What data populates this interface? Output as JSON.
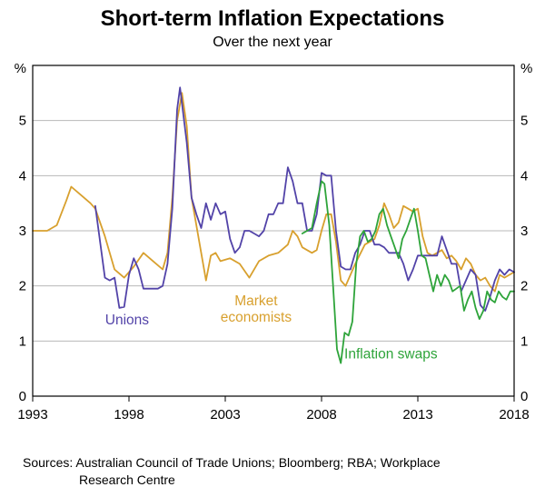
{
  "chart_data": {
    "type": "line",
    "title": "Short-term Inflation Expectations",
    "subtitle": "Over the next year",
    "unit_left": "%",
    "unit_right": "%",
    "xlim": [
      1993,
      2018
    ],
    "ylim": [
      0,
      6
    ],
    "yticks": [
      0,
      1,
      2,
      3,
      4,
      5
    ],
    "xticks": [
      1993,
      1998,
      2003,
      2008,
      2013,
      2018
    ],
    "grid": true,
    "style": {
      "grid_color": "#b8b8b8",
      "frame_color": "#000000"
    },
    "series": [
      {
        "name": "Market economists",
        "color": "#D8A02E",
        "points": [
          [
            1993.0,
            3.0
          ],
          [
            1993.75,
            3.0
          ],
          [
            1994.25,
            3.1
          ],
          [
            1994.75,
            3.55
          ],
          [
            1995.0,
            3.8
          ],
          [
            1995.5,
            3.65
          ],
          [
            1996.0,
            3.5
          ],
          [
            1996.25,
            3.4
          ],
          [
            1996.75,
            2.9
          ],
          [
            1997.25,
            2.3
          ],
          [
            1997.75,
            2.15
          ],
          [
            1998.25,
            2.35
          ],
          [
            1998.75,
            2.6
          ],
          [
            1999.25,
            2.45
          ],
          [
            1999.75,
            2.3
          ],
          [
            2000.0,
            2.6
          ],
          [
            2000.25,
            3.6
          ],
          [
            2000.5,
            5.0
          ],
          [
            2000.75,
            5.5
          ],
          [
            2001.0,
            4.9
          ],
          [
            2001.25,
            3.6
          ],
          [
            2001.75,
            2.6
          ],
          [
            2002.0,
            2.1
          ],
          [
            2002.25,
            2.55
          ],
          [
            2002.5,
            2.6
          ],
          [
            2002.75,
            2.45
          ],
          [
            2003.25,
            2.5
          ],
          [
            2003.75,
            2.4
          ],
          [
            2004.25,
            2.15
          ],
          [
            2004.75,
            2.45
          ],
          [
            2005.25,
            2.55
          ],
          [
            2005.75,
            2.6
          ],
          [
            2006.25,
            2.75
          ],
          [
            2006.5,
            3.0
          ],
          [
            2006.75,
            2.9
          ],
          [
            2007.0,
            2.7
          ],
          [
            2007.5,
            2.6
          ],
          [
            2007.75,
            2.65
          ],
          [
            2008.0,
            3.0
          ],
          [
            2008.25,
            3.3
          ],
          [
            2008.5,
            3.3
          ],
          [
            2008.75,
            2.8
          ],
          [
            2009.0,
            2.1
          ],
          [
            2009.25,
            2.0
          ],
          [
            2009.75,
            2.4
          ],
          [
            2010.25,
            2.75
          ],
          [
            2010.75,
            2.85
          ],
          [
            2011.0,
            3.1
          ],
          [
            2011.25,
            3.5
          ],
          [
            2011.5,
            3.3
          ],
          [
            2011.75,
            3.05
          ],
          [
            2012.0,
            3.15
          ],
          [
            2012.25,
            3.45
          ],
          [
            2012.5,
            3.4
          ],
          [
            2012.75,
            3.35
          ],
          [
            2013.0,
            3.4
          ],
          [
            2013.25,
            2.9
          ],
          [
            2013.5,
            2.6
          ],
          [
            2013.75,
            2.55
          ],
          [
            2014.0,
            2.6
          ],
          [
            2014.25,
            2.65
          ],
          [
            2014.5,
            2.5
          ],
          [
            2014.75,
            2.55
          ],
          [
            2015.0,
            2.45
          ],
          [
            2015.25,
            2.3
          ],
          [
            2015.5,
            2.5
          ],
          [
            2015.75,
            2.4
          ],
          [
            2016.0,
            2.2
          ],
          [
            2016.25,
            2.1
          ],
          [
            2016.5,
            2.15
          ],
          [
            2016.75,
            2.0
          ],
          [
            2017.0,
            1.9
          ],
          [
            2017.25,
            2.2
          ],
          [
            2017.5,
            2.15
          ],
          [
            2017.75,
            2.2
          ],
          [
            2018.0,
            2.25
          ]
        ]
      },
      {
        "name": "Unions",
        "color": "#5243A8",
        "points": [
          [
            1996.25,
            3.45
          ],
          [
            1996.75,
            2.15
          ],
          [
            1997.0,
            2.1
          ],
          [
            1997.25,
            2.15
          ],
          [
            1997.5,
            1.6
          ],
          [
            1997.75,
            1.62
          ],
          [
            1998.0,
            2.2
          ],
          [
            1998.25,
            2.5
          ],
          [
            1998.5,
            2.3
          ],
          [
            1998.75,
            1.95
          ],
          [
            1999.5,
            1.95
          ],
          [
            1999.75,
            2.0
          ],
          [
            2000.0,
            2.4
          ],
          [
            2000.25,
            3.4
          ],
          [
            2000.5,
            5.2
          ],
          [
            2000.65,
            5.6
          ],
          [
            2001.0,
            4.6
          ],
          [
            2001.25,
            3.6
          ],
          [
            2001.5,
            3.3
          ],
          [
            2001.75,
            3.05
          ],
          [
            2002.0,
            3.5
          ],
          [
            2002.25,
            3.2
          ],
          [
            2002.5,
            3.5
          ],
          [
            2002.75,
            3.3
          ],
          [
            2003.0,
            3.35
          ],
          [
            2003.25,
            2.85
          ],
          [
            2003.5,
            2.6
          ],
          [
            2003.75,
            2.7
          ],
          [
            2004.0,
            3.0
          ],
          [
            2004.25,
            3.0
          ],
          [
            2004.5,
            2.95
          ],
          [
            2004.75,
            2.9
          ],
          [
            2005.0,
            3.0
          ],
          [
            2005.25,
            3.3
          ],
          [
            2005.5,
            3.3
          ],
          [
            2005.75,
            3.5
          ],
          [
            2006.0,
            3.5
          ],
          [
            2006.25,
            4.15
          ],
          [
            2006.5,
            3.9
          ],
          [
            2006.75,
            3.5
          ],
          [
            2007.0,
            3.5
          ],
          [
            2007.25,
            3.0
          ],
          [
            2007.5,
            3.0
          ],
          [
            2007.75,
            3.3
          ],
          [
            2008.0,
            4.05
          ],
          [
            2008.25,
            4.0
          ],
          [
            2008.5,
            4.0
          ],
          [
            2008.75,
            3.0
          ],
          [
            2009.0,
            2.35
          ],
          [
            2009.25,
            2.3
          ],
          [
            2009.5,
            2.3
          ],
          [
            2009.75,
            2.6
          ],
          [
            2010.0,
            2.75
          ],
          [
            2010.25,
            3.0
          ],
          [
            2010.5,
            3.0
          ],
          [
            2010.75,
            2.75
          ],
          [
            2011.0,
            2.75
          ],
          [
            2011.25,
            2.7
          ],
          [
            2011.5,
            2.6
          ],
          [
            2011.75,
            2.6
          ],
          [
            2012.0,
            2.6
          ],
          [
            2012.25,
            2.4
          ],
          [
            2012.5,
            2.1
          ],
          [
            2012.75,
            2.3
          ],
          [
            2013.0,
            2.55
          ],
          [
            2013.5,
            2.55
          ],
          [
            2014.0,
            2.55
          ],
          [
            2014.25,
            2.9
          ],
          [
            2014.5,
            2.65
          ],
          [
            2014.75,
            2.4
          ],
          [
            2015.0,
            2.4
          ],
          [
            2015.25,
            1.9
          ],
          [
            2015.5,
            2.1
          ],
          [
            2015.75,
            2.3
          ],
          [
            2016.0,
            2.2
          ],
          [
            2016.25,
            1.65
          ],
          [
            2016.5,
            1.55
          ],
          [
            2016.75,
            1.8
          ],
          [
            2017.0,
            2.1
          ],
          [
            2017.25,
            2.3
          ],
          [
            2017.5,
            2.2
          ],
          [
            2017.75,
            2.3
          ],
          [
            2018.0,
            2.25
          ]
        ]
      },
      {
        "name": "Inflation swaps",
        "color": "#2EA43A",
        "points": [
          [
            2007.0,
            2.95
          ],
          [
            2007.25,
            3.0
          ],
          [
            2007.5,
            3.05
          ],
          [
            2007.75,
            3.5
          ],
          [
            2008.0,
            3.9
          ],
          [
            2008.15,
            3.85
          ],
          [
            2008.4,
            3.1
          ],
          [
            2008.6,
            2.0
          ],
          [
            2008.8,
            0.85
          ],
          [
            2009.0,
            0.6
          ],
          [
            2009.2,
            1.15
          ],
          [
            2009.4,
            1.1
          ],
          [
            2009.6,
            1.35
          ],
          [
            2009.8,
            2.4
          ],
          [
            2010.0,
            2.9
          ],
          [
            2010.2,
            3.0
          ],
          [
            2010.4,
            2.8
          ],
          [
            2010.6,
            2.85
          ],
          [
            2010.8,
            3.0
          ],
          [
            2011.0,
            3.3
          ],
          [
            2011.2,
            3.4
          ],
          [
            2011.4,
            3.1
          ],
          [
            2011.6,
            2.9
          ],
          [
            2011.8,
            2.7
          ],
          [
            2012.0,
            2.5
          ],
          [
            2012.2,
            2.85
          ],
          [
            2012.4,
            3.0
          ],
          [
            2012.6,
            3.2
          ],
          [
            2012.8,
            3.4
          ],
          [
            2013.0,
            3.0
          ],
          [
            2013.2,
            2.55
          ],
          [
            2013.4,
            2.5
          ],
          [
            2013.6,
            2.2
          ],
          [
            2013.8,
            1.9
          ],
          [
            2014.0,
            2.2
          ],
          [
            2014.2,
            2.0
          ],
          [
            2014.4,
            2.2
          ],
          [
            2014.6,
            2.1
          ],
          [
            2014.8,
            1.9
          ],
          [
            2015.0,
            1.95
          ],
          [
            2015.2,
            2.0
          ],
          [
            2015.4,
            1.55
          ],
          [
            2015.6,
            1.75
          ],
          [
            2015.8,
            1.9
          ],
          [
            2016.0,
            1.6
          ],
          [
            2016.2,
            1.4
          ],
          [
            2016.4,
            1.55
          ],
          [
            2016.6,
            1.9
          ],
          [
            2016.8,
            1.75
          ],
          [
            2017.0,
            1.7
          ],
          [
            2017.2,
            1.9
          ],
          [
            2017.4,
            1.8
          ],
          [
            2017.6,
            1.75
          ],
          [
            2017.8,
            1.9
          ],
          [
            2018.0,
            1.9
          ]
        ]
      }
    ],
    "annotations": [
      {
        "lines": [
          "Unions"
        ],
        "x": 1997.9,
        "y": 1.3,
        "color": "#5243A8",
        "anchor": "middle"
      },
      {
        "lines": [
          "Market",
          "economists"
        ],
        "x": 2004.6,
        "y": 1.65,
        "color": "#D8A02E",
        "anchor": "middle"
      },
      {
        "lines": [
          "Inflation swaps"
        ],
        "x": 2011.6,
        "y": 0.68,
        "color": "#2EA43A",
        "anchor": "middle"
      }
    ]
  },
  "sources": {
    "line1": "Sources: Australian Council of Trade Unions; Bloomberg; RBA; Workplace",
    "line2": "Research Centre"
  }
}
